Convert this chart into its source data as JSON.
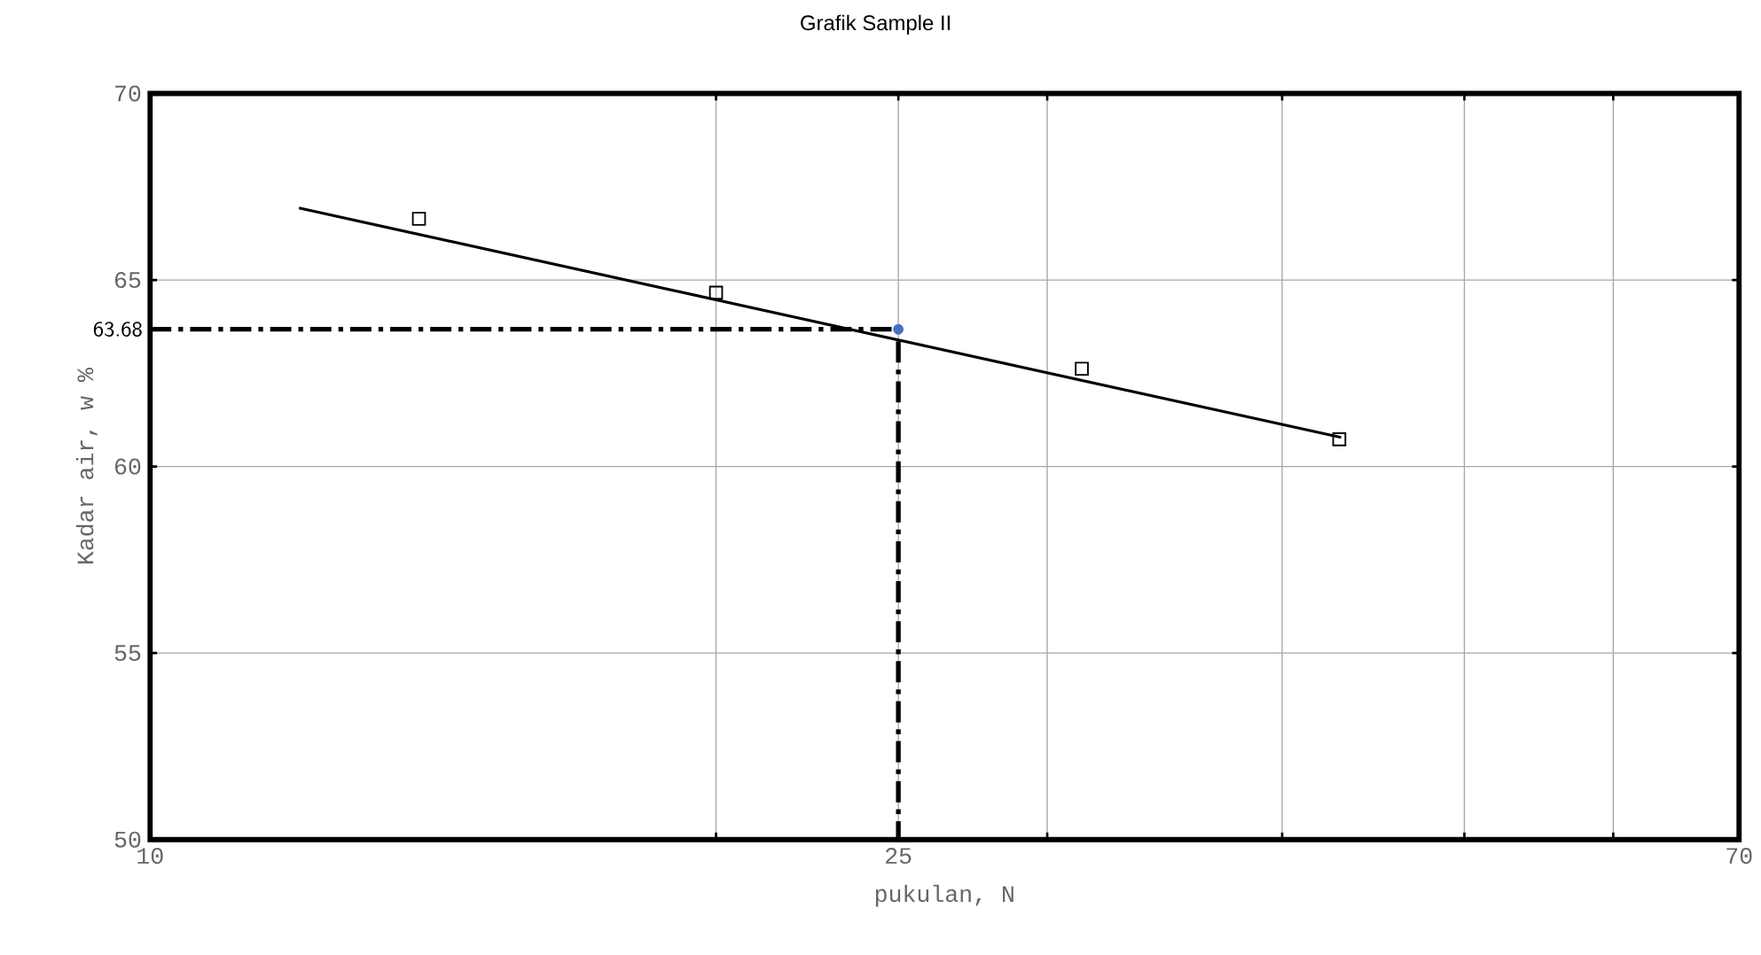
{
  "chart_data": {
    "type": "scatter",
    "title": "Grafik Sample II",
    "xlabel": "pukulan, N",
    "ylabel": "Kadar air, w %",
    "log": "x",
    "grid": true,
    "xlim": [
      10,
      70
    ],
    "ylim": [
      50,
      70
    ],
    "xticks": [
      10,
      {
        "value": 20,
        "label": null
      },
      25,
      {
        "value": 30,
        "label": null
      },
      {
        "value": 40,
        "label": null
      },
      {
        "value": 50,
        "label": null
      },
      {
        "value": 60,
        "label": null
      },
      70
    ],
    "yticks": [
      50,
      55,
      60,
      65,
      70
    ],
    "annotations": [
      {
        "text": "63.68",
        "x": 10,
        "y": 63.68
      }
    ],
    "series": [
      {
        "type": "line",
        "color": "#000000",
        "x": [
          10,
          25,
          25
        ],
        "values": [
          63.68,
          63.68,
          50
        ],
        "line_style": "dashed",
        "marker": "none"
      },
      {
        "type": "line",
        "color": "#000000",
        "x": [
          12,
          43
        ],
        "values": [
          66.93,
          60.78
        ],
        "line_style": "solid",
        "marker": "none"
      },
      {
        "color": "#000000",
        "x": [
          13.9,
          20,
          31.3,
          42.9
        ],
        "values": [
          66.64,
          64.66,
          62.62,
          60.73
        ],
        "marker": "square"
      },
      {
        "color": "#4472c4",
        "x": [
          25
        ],
        "values": [
          63.68
        ],
        "marker": "circle"
      }
    ]
  }
}
